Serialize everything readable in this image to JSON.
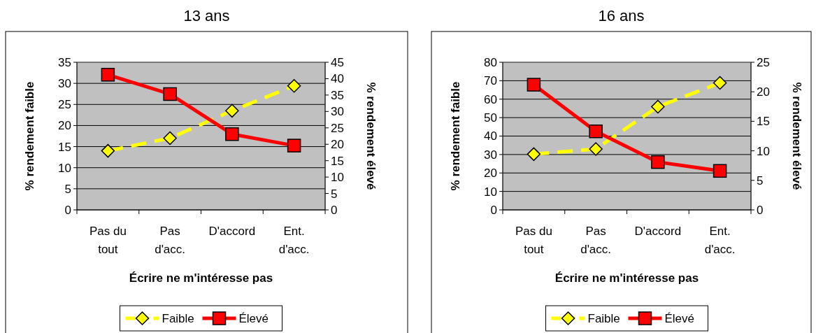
{
  "chart_data": [
    {
      "type": "line",
      "title": "13 ans",
      "categories": [
        "Pas du tout",
        "Pas d'acc.",
        "D'accord",
        "Ent. d'acc."
      ],
      "xlabel": "Écrire ne m'intéresse pas",
      "ylabel": "% rendement faible",
      "y2label": "% rendement élevé",
      "ylim": [
        0,
        35
      ],
      "yticks": [
        0,
        5,
        10,
        15,
        20,
        25,
        30,
        35
      ],
      "y2lim": [
        0,
        45
      ],
      "y2ticks": [
        0,
        5,
        10,
        15,
        20,
        25,
        30,
        35,
        40,
        45
      ],
      "grid": "y",
      "legend": "bottom",
      "series": [
        {
          "name": "Faible",
          "color": "#ffff00",
          "values": [
            14,
            17,
            23.5,
            29.4
          ],
          "marker": "diamond",
          "line_style": "dashed"
        },
        {
          "name": "Élevé",
          "color": "#ff0000",
          "values": [
            41.2,
            35.3,
            23.1,
            19.6
          ],
          "axis": "y2",
          "marker": "square",
          "line_style": "solid"
        }
      ]
    },
    {
      "type": "line",
      "title": "16 ans",
      "categories": [
        "Pas du tout",
        "Pas d'acc.",
        "D'accord",
        "Ent. d'acc."
      ],
      "xlabel": "Écrire ne m'intéresse pas",
      "ylabel": "% rendement faible",
      "y2label": "% rendement élevé",
      "ylim": [
        0,
        80
      ],
      "yticks": [
        0,
        10,
        20,
        30,
        40,
        50,
        60,
        70,
        80
      ],
      "y2lim": [
        0,
        25
      ],
      "y2ticks": [
        0,
        5,
        10,
        15,
        20,
        25
      ],
      "grid": "y",
      "legend": "bottom",
      "series": [
        {
          "name": "Faible",
          "color": "#ffff00",
          "values": [
            30.2,
            33,
            55.9,
            68.8
          ],
          "marker": "diamond",
          "line_style": "dashed"
        },
        {
          "name": "Élevé",
          "color": "#ff0000",
          "values": [
            21.2,
            13.3,
            8.1,
            6.6
          ],
          "axis": "y2",
          "marker": "square",
          "line_style": "solid"
        }
      ]
    }
  ]
}
